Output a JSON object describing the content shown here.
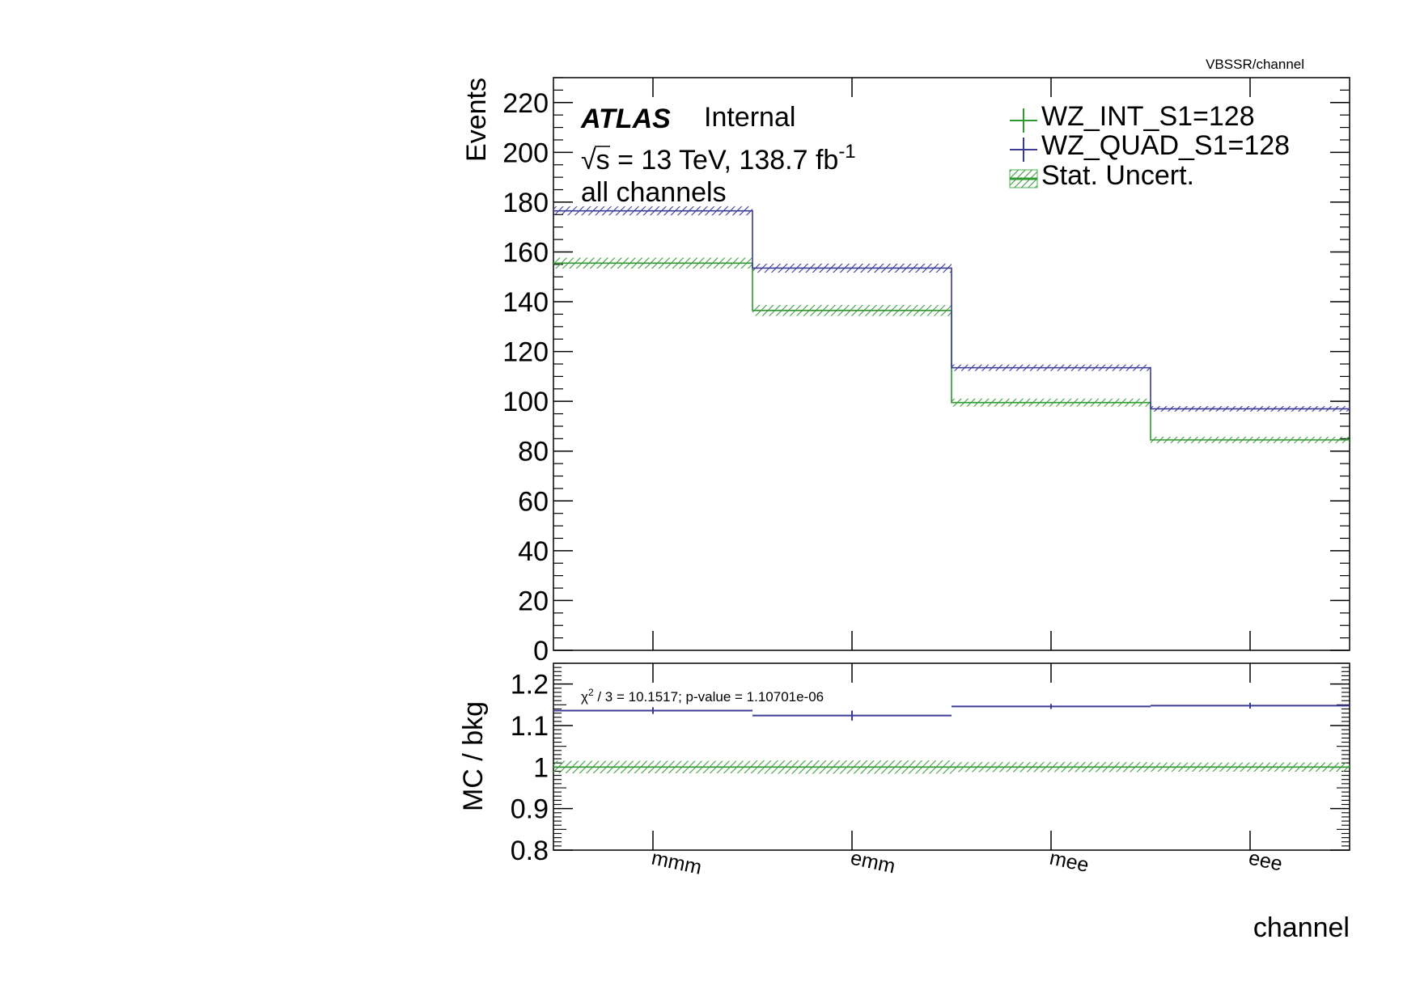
{
  "corner_label": "VBSSR/channel",
  "atlas": {
    "label": "ATLAS",
    "status": "Internal"
  },
  "energy": {
    "prefix": "√s = 13 TeV, 138.7 fb",
    "exponent": "-1"
  },
  "region": "all channels",
  "chi2": {
    "symbol": "χ",
    "exponent": "2",
    "text": " / 3 = 10.1517; p-value = 1.10701e-06"
  },
  "legend": {
    "int": "WZ_INT_S1=128",
    "quad": "WZ_QUAD_S1=128",
    "unc": "Stat. Uncert."
  },
  "colors": {
    "int": "#2f9a2f",
    "quad": "#3b3b96",
    "unc": "#4caf50"
  },
  "chart_data": [
    {
      "type": "bar",
      "style": "step-histogram",
      "xlabel": "channel",
      "ylabel": "Events",
      "categories": [
        "mmm",
        "emm",
        "mee",
        "eee"
      ],
      "ylim": [
        0,
        230
      ],
      "yticks": [
        0,
        20,
        40,
        60,
        80,
        100,
        120,
        140,
        160,
        180,
        200,
        220
      ],
      "series": [
        {
          "name": "WZ_INT_S1=128",
          "values": [
            155.5,
            136.5,
            99.5,
            84.5
          ],
          "uncert": [
            2.2,
            2.2,
            1.6,
            1.3
          ]
        },
        {
          "name": "WZ_QUAD_S1=128",
          "values": [
            176.5,
            153.5,
            113.5,
            97.0
          ],
          "uncert": [
            1.8,
            1.8,
            1.3,
            1.1
          ]
        }
      ]
    },
    {
      "type": "scatter",
      "xlabel": "channel",
      "ylabel": "MC / bkg",
      "categories": [
        "mmm",
        "emm",
        "mee",
        "eee"
      ],
      "ylim": [
        0.8,
        1.25
      ],
      "yticks": [
        0.8,
        0.9,
        1.0,
        1.1,
        1.2
      ],
      "ytick_labels": [
        "0.8",
        "0.9",
        "1",
        "1.1",
        "1.2"
      ],
      "stat_band": {
        "name": "Stat. Uncert.",
        "values": [
          1.0,
          1.0,
          1.0,
          1.0
        ],
        "uncert": [
          0.015,
          0.016,
          0.012,
          0.011
        ]
      },
      "series": [
        {
          "name": "WZ_QUAD_S1=128",
          "values": [
            1.136,
            1.124,
            1.146,
            1.148
          ],
          "uncert": [
            0.008,
            0.012,
            0.006,
            0.007
          ]
        }
      ]
    }
  ]
}
